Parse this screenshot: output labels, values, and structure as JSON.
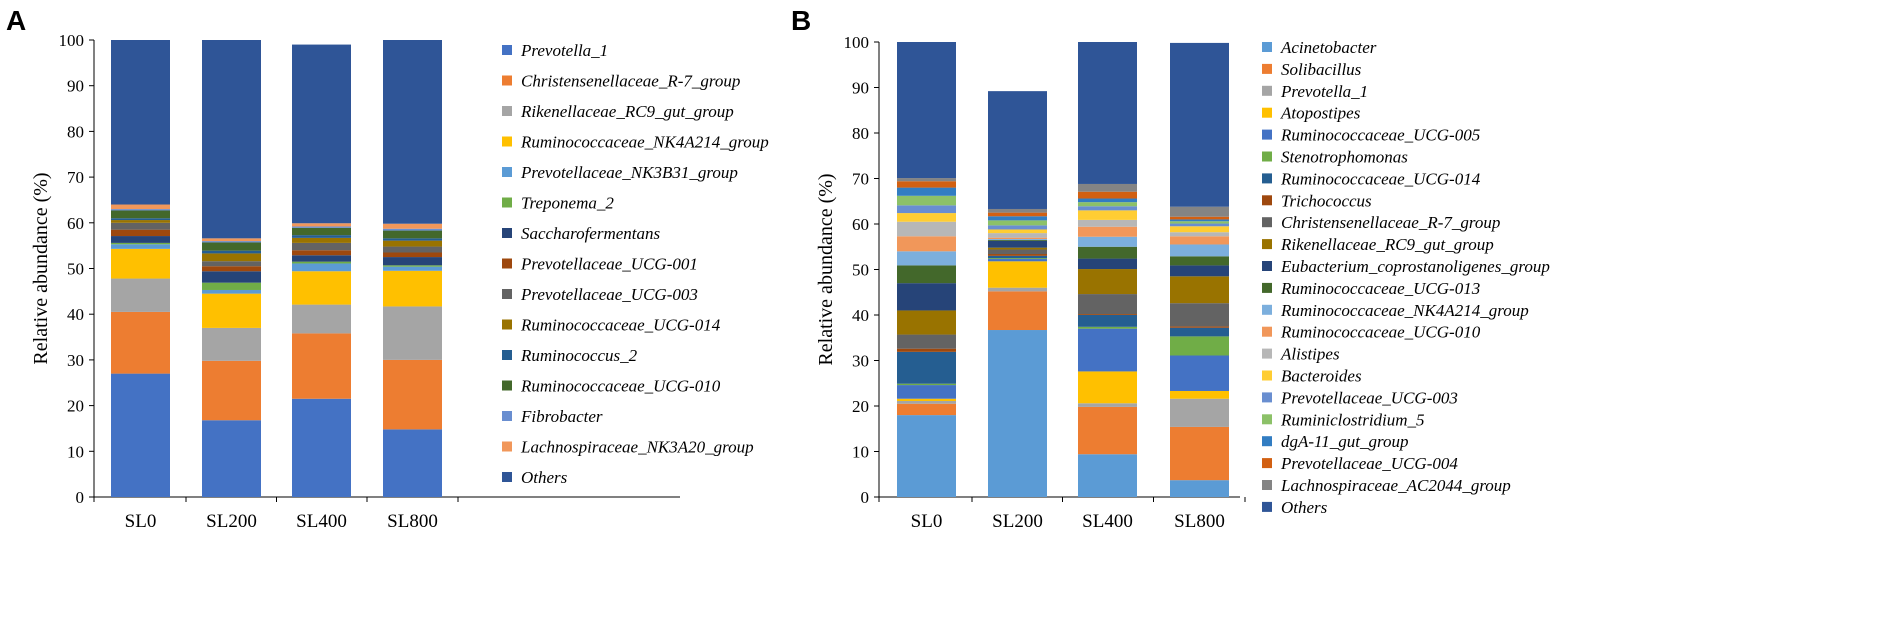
{
  "chart_data": [
    {
      "panel": "A",
      "type": "bar",
      "stacked": true,
      "ylabel": "Relative abundance (%)",
      "xlabel": "",
      "ylim": [
        0,
        100
      ],
      "yticks": [
        0,
        10,
        20,
        30,
        40,
        50,
        60,
        70,
        80,
        90,
        100
      ],
      "categories": [
        "SL0",
        "SL200",
        "SL400",
        "SL800"
      ],
      "legend_position": "right",
      "series": [
        {
          "name": "Prevotella_1",
          "color": "#4472C4",
          "values": [
            27.0,
            16.8,
            21.5,
            14.8
          ]
        },
        {
          "name": "Christensenellaceae_R-7_group",
          "color": "#ED7D31",
          "values": [
            13.5,
            13.0,
            14.3,
            15.2
          ]
        },
        {
          "name": "Rikenellaceae_RC9_gut_group",
          "color": "#A5A5A5",
          "values": [
            7.3,
            7.2,
            6.3,
            11.7
          ]
        },
        {
          "name": "Ruminococcaceae_NK4A214_group",
          "color": "#FFC000",
          "values": [
            6.5,
            7.5,
            7.3,
            7.8
          ]
        },
        {
          "name": "Prevotellaceae_NK3B31_group",
          "color": "#5B9BD5",
          "values": [
            1.0,
            0.8,
            1.7,
            0.9
          ]
        },
        {
          "name": "Treponema_2",
          "color": "#70AD47",
          "values": [
            0.3,
            1.6,
            0.4,
            0.3
          ]
        },
        {
          "name": "Saccharofermentans",
          "color": "#264478",
          "values": [
            1.5,
            2.5,
            1.4,
            1.8
          ]
        },
        {
          "name": "Prevotellaceae_UCG-001",
          "color": "#9E480E",
          "values": [
            1.4,
            1.1,
            1.1,
            1.0
          ]
        },
        {
          "name": "Prevotellaceae_UCG-003",
          "color": "#636363",
          "values": [
            1.5,
            1.1,
            1.6,
            1.3
          ]
        },
        {
          "name": "Ruminococcaceae_UCG-014",
          "color": "#997300",
          "values": [
            0.6,
            1.7,
            1.1,
            1.3
          ]
        },
        {
          "name": "Ruminococcus_2",
          "color": "#255E91",
          "values": [
            0.4,
            0.6,
            0.6,
            0.5
          ]
        },
        {
          "name": "Ruminococcaceae_UCG-010",
          "color": "#43682B",
          "values": [
            1.7,
            1.8,
            1.6,
            1.7
          ]
        },
        {
          "name": "Fibrobacter",
          "color": "#698ED0",
          "values": [
            0.3,
            0.3,
            0.3,
            0.4
          ]
        },
        {
          "name": "Lachnospiraceae_NK3A20_group",
          "color": "#F1975A",
          "values": [
            1.0,
            0.6,
            0.7,
            1.1
          ]
        },
        {
          "name": "Others",
          "color": "#2F5597",
          "values": [
            36.0,
            43.4,
            39.1,
            40.2
          ]
        }
      ]
    },
    {
      "panel": "B",
      "type": "bar",
      "stacked": true,
      "ylabel": "Relative abundance (%)",
      "xlabel": "",
      "ylim": [
        0,
        100
      ],
      "yticks": [
        0,
        10,
        20,
        30,
        40,
        50,
        60,
        70,
        80,
        90,
        100
      ],
      "categories": [
        "SL0",
        "SL200",
        "SL400",
        "SL800"
      ],
      "legend_position": "right",
      "series": [
        {
          "name": "Acinetobacter",
          "color": "#5B9BD5",
          "values": [
            18.0,
            36.7,
            9.4,
            3.7
          ]
        },
        {
          "name": "Solibacillus",
          "color": "#ED7D31",
          "values": [
            2.5,
            8.5,
            10.4,
            11.7
          ]
        },
        {
          "name": "Prevotella_1",
          "color": "#A5A5A5",
          "values": [
            0.6,
            0.8,
            0.8,
            6.2
          ]
        },
        {
          "name": "Atopostipes",
          "color": "#FFC000",
          "values": [
            0.5,
            5.8,
            7.0,
            1.7
          ]
        },
        {
          "name": "Ruminococcaceae_UCG-005",
          "color": "#4472C4",
          "values": [
            3.0,
            0.5,
            9.4,
            7.8
          ]
        },
        {
          "name": "Stenotrophomonas",
          "color": "#70AD47",
          "values": [
            0.3,
            0.2,
            0.4,
            4.2
          ]
        },
        {
          "name": "Ruminococcaceae_UCG-014",
          "color": "#255E91",
          "values": [
            7.0,
            0.5,
            2.6,
            1.9
          ]
        },
        {
          "name": "Trichococcus",
          "color": "#9E480E",
          "values": [
            0.7,
            0.4,
            0.2,
            0.3
          ]
        },
        {
          "name": "Christensenellaceae_R-7_group",
          "color": "#636363",
          "values": [
            3.1,
            1.0,
            4.4,
            5.1
          ]
        },
        {
          "name": "Rikenellaceae_RC9_gut_group",
          "color": "#997300",
          "values": [
            5.3,
            0.4,
            5.5,
            5.9
          ]
        },
        {
          "name": "Eubacterium_coprostanoligenes_group",
          "color": "#264478",
          "values": [
            6.0,
            1.5,
            2.3,
            2.4
          ]
        },
        {
          "name": "Ruminococcaceae_UCG-013",
          "color": "#43682B",
          "values": [
            3.9,
            0.2,
            2.6,
            2.0
          ]
        },
        {
          "name": "Ruminococcaceae_NK4A214_group",
          "color": "#7CAFDD",
          "values": [
            3.1,
            0.2,
            2.2,
            2.6
          ]
        },
        {
          "name": "Ruminococcaceae_UCG-010",
          "color": "#F1975A",
          "values": [
            3.3,
            0.3,
            2.2,
            1.8
          ]
        },
        {
          "name": "Alistipes",
          "color": "#B7B7B7",
          "values": [
            3.2,
            1.0,
            1.5,
            0.9
          ]
        },
        {
          "name": "Bacteroides",
          "color": "#FFCD33",
          "values": [
            1.9,
            0.8,
            2.1,
            1.3
          ]
        },
        {
          "name": "Prevotellaceae_UCG-003",
          "color": "#698ED0",
          "values": [
            1.7,
            0.9,
            0.9,
            0.6
          ]
        },
        {
          "name": "Ruminiclostridium_5",
          "color": "#8CC168",
          "values": [
            2.1,
            1.1,
            0.9,
            0.5
          ]
        },
        {
          "name": "dgA-11_gut_group",
          "color": "#327DC2",
          "values": [
            1.8,
            0.9,
            0.8,
            0.4
          ]
        },
        {
          "name": "Prevotellaceae_UCG-004",
          "color": "#D26012",
          "values": [
            1.4,
            0.8,
            1.5,
            0.6
          ]
        },
        {
          "name": "Lachnospiraceae_AC2044_group",
          "color": "#848484",
          "values": [
            0.7,
            0.8,
            1.7,
            2.2
          ]
        },
        {
          "name": "Others",
          "color": "#2F5597",
          "values": [
            29.9,
            25.9,
            31.2,
            36.0
          ]
        }
      ]
    }
  ]
}
